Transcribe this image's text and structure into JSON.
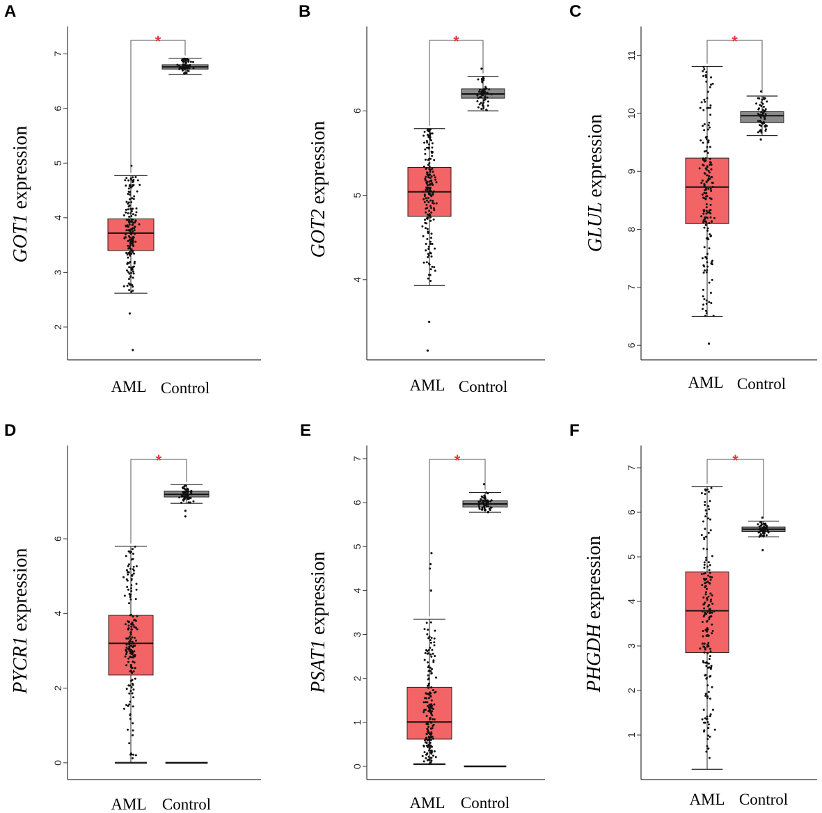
{
  "figure": {
    "categories": [
      "AML",
      "Control"
    ],
    "significance_marker": "*",
    "colors": {
      "aml_box": "#f26465",
      "control_box": "#8a8a8a",
      "points": "#111111",
      "axis": "#333333",
      "sig": "#e8353b"
    }
  },
  "chart_data": [
    {
      "panel": "A",
      "type": "box",
      "gene": "GOT1",
      "ylabel_suffix": " expression",
      "ylim": [
        1.4,
        7.5
      ],
      "yticks": [
        2,
        3,
        4,
        5,
        6,
        7
      ],
      "categories": [
        "AML",
        "Control"
      ],
      "series": [
        {
          "name": "AML",
          "q1": 3.4,
          "median": 3.72,
          "q3": 3.98,
          "whisker_low": 2.62,
          "whisker_high": 4.77,
          "n": 180,
          "extra_points": [
            1.58,
            2.25,
            4.95
          ]
        },
        {
          "name": "Control",
          "q1": 6.72,
          "median": 6.76,
          "q3": 6.8,
          "whisker_low": 6.62,
          "whisker_high": 6.92,
          "n": 60,
          "extra_points": []
        }
      ],
      "significance": "*"
    },
    {
      "panel": "B",
      "type": "box",
      "gene": "GOT2",
      "ylabel_suffix": " expression",
      "ylim": [
        3.05,
        7.0
      ],
      "yticks": [
        4,
        5,
        6
      ],
      "categories": [
        "AML",
        "Control"
      ],
      "series": [
        {
          "name": "AML",
          "q1": 4.75,
          "median": 5.04,
          "q3": 5.33,
          "whisker_low": 3.93,
          "whisker_high": 5.79,
          "n": 180,
          "extra_points": [
            3.5,
            3.16
          ]
        },
        {
          "name": "Control",
          "q1": 6.15,
          "median": 6.2,
          "q3": 6.26,
          "whisker_low": 6.0,
          "whisker_high": 6.41,
          "n": 60,
          "extra_points": [
            6.5
          ]
        }
      ],
      "significance": "*"
    },
    {
      "panel": "C",
      "type": "box",
      "gene": "GLUL",
      "ylabel_suffix": " expression",
      "ylim": [
        5.75,
        11.5
      ],
      "yticks": [
        6,
        7,
        8,
        9,
        10,
        11
      ],
      "categories": [
        "AML",
        "Control"
      ],
      "series": [
        {
          "name": "AML",
          "q1": 8.1,
          "median": 8.73,
          "q3": 9.23,
          "whisker_low": 6.5,
          "whisker_high": 10.81,
          "n": 180,
          "extra_points": [
            6.03
          ]
        },
        {
          "name": "Control",
          "q1": 9.84,
          "median": 9.96,
          "q3": 10.03,
          "whisker_low": 9.62,
          "whisker_high": 10.3,
          "n": 60,
          "extra_points": [
            9.55,
            10.38
          ]
        }
      ],
      "significance": "*"
    },
    {
      "panel": "D",
      "type": "box",
      "gene": "PYCR1",
      "ylabel_suffix": " expression",
      "ylim": [
        -0.45,
        8.5
      ],
      "yticks": [
        0,
        2,
        4,
        6
      ],
      "categories": [
        "AML",
        "Control"
      ],
      "series": [
        {
          "name": "AML",
          "q1": 2.35,
          "median": 3.2,
          "q3": 3.95,
          "whisker_low": 0.0,
          "whisker_high": 5.8,
          "n": 180,
          "extra_points": []
        },
        {
          "name": "Control",
          "q1": 7.12,
          "median": 7.19,
          "q3": 7.28,
          "whisker_low": 6.95,
          "whisker_high": 7.45,
          "n": 60,
          "extra_points": [
            6.6,
            6.75
          ]
        }
      ],
      "significance": "*"
    },
    {
      "panel": "E",
      "type": "box",
      "gene": "PSAT1",
      "ylabel_suffix": " expression",
      "ylim": [
        -0.3,
        7.3
      ],
      "yticks": [
        0,
        1,
        2,
        3,
        4,
        5,
        6,
        7
      ],
      "categories": [
        "AML",
        "Control"
      ],
      "series": [
        {
          "name": "AML",
          "q1": 0.62,
          "median": 1.01,
          "q3": 1.8,
          "whisker_low": 0.05,
          "whisker_high": 3.35,
          "n": 180,
          "extra_points": [
            4.0,
            4.5,
            4.6,
            4.85
          ]
        },
        {
          "name": "Control",
          "q1": 5.9,
          "median": 5.97,
          "q3": 6.04,
          "whisker_low": 5.78,
          "whisker_high": 6.23,
          "n": 60,
          "extra_points": [
            6.42
          ]
        }
      ],
      "significance": "*"
    },
    {
      "panel": "F",
      "type": "box",
      "gene": "PHGDH",
      "ylabel_suffix": " expression",
      "ylim": [
        0.0,
        7.5
      ],
      "yticks": [
        1,
        2,
        3,
        4,
        5,
        6,
        7
      ],
      "categories": [
        "AML",
        "Control"
      ],
      "series": [
        {
          "name": "AML",
          "q1": 2.85,
          "median": 3.79,
          "q3": 4.66,
          "whisker_low": 0.23,
          "whisker_high": 6.58,
          "n": 180,
          "extra_points": []
        },
        {
          "name": "Control",
          "q1": 5.57,
          "median": 5.62,
          "q3": 5.67,
          "whisker_low": 5.45,
          "whisker_high": 5.8,
          "n": 60,
          "extra_points": [
            5.15,
            5.88
          ]
        }
      ],
      "significance": "*"
    }
  ]
}
